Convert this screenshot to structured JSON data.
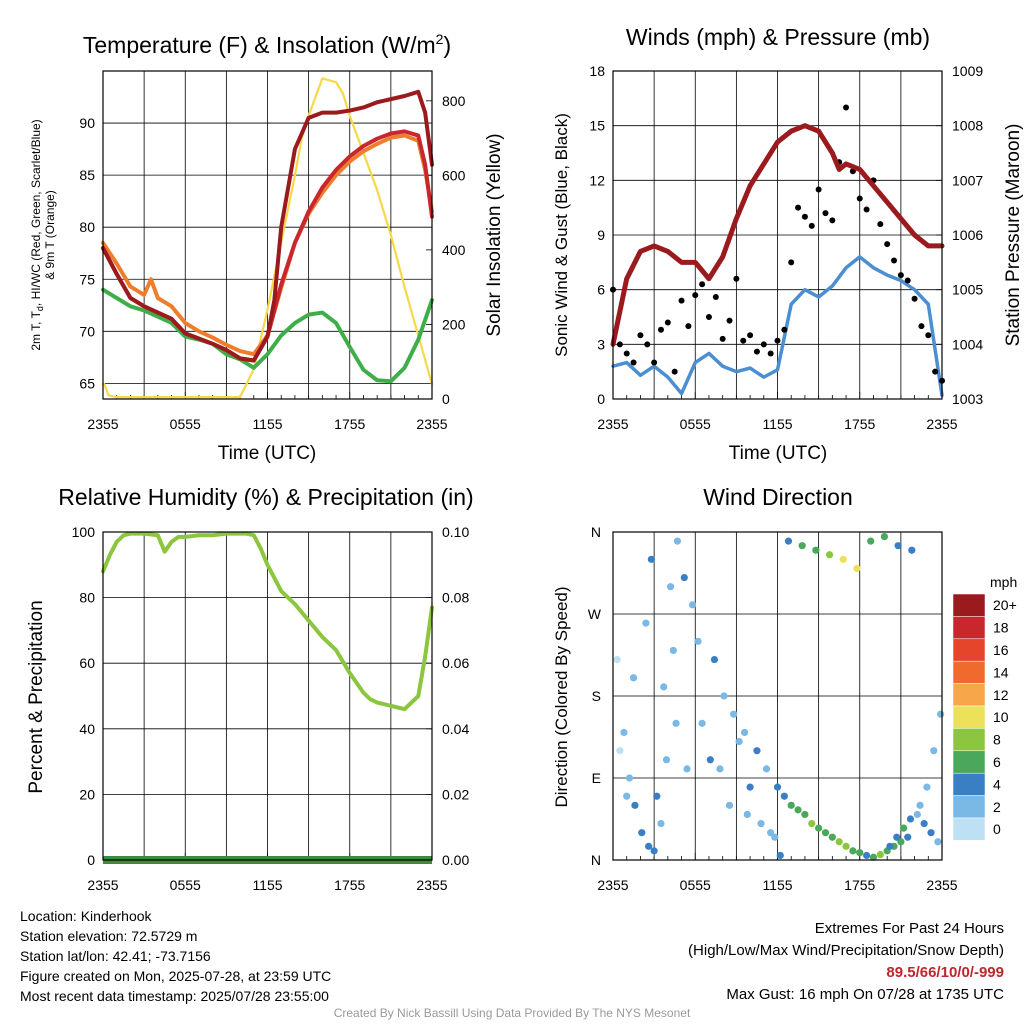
{
  "chart_data": [
    {
      "type": "line",
      "title": "Temperature (F) & Insolation (W/m2)",
      "xlabel": "Time (UTC)",
      "ylabel": "2m T, Td, HI/WC (Red, Green, Scarlet/Blue) & 9m T (Orange)",
      "y2label": "Solar Insolation (Yellow)",
      "x_ticks": [
        "2355",
        "0555",
        "1155",
        "1755",
        "2355"
      ],
      "ylim": [
        63.5,
        95
      ],
      "y_ticks": [
        65,
        70,
        75,
        80,
        85,
        90
      ],
      "y2lim": [
        0,
        880
      ],
      "y2_ticks": [
        0,
        200,
        400,
        600,
        800
      ],
      "series": [
        {
          "name": "2m T",
          "color": "#c8282d",
          "axis": "left",
          "x": [
            0,
            1,
            2,
            3,
            4,
            5,
            6,
            7,
            8,
            9,
            10,
            11,
            12,
            13,
            14,
            15,
            16,
            17,
            18,
            19,
            20,
            21,
            22,
            23,
            23.5,
            24
          ],
          "y": [
            78,
            75.5,
            73.2,
            72.4,
            71.8,
            71.2,
            69.8,
            69.3,
            68.8,
            68.2,
            67.4,
            67.2,
            69.5,
            74.5,
            78.5,
            81.5,
            83.8,
            85.5,
            86.8,
            87.8,
            88.5,
            89,
            89.2,
            88.8,
            86,
            81
          ]
        },
        {
          "name": "Td",
          "color": "#3fae49",
          "axis": "left",
          "x": [
            0,
            1,
            2,
            3,
            4,
            5,
            6,
            7,
            8,
            9,
            10,
            11,
            12,
            13,
            14,
            15,
            16,
            17,
            18,
            19,
            20,
            21,
            22,
            23,
            24
          ],
          "y": [
            74,
            73.2,
            72.4,
            72,
            71.4,
            70.8,
            69.5,
            69.2,
            68.8,
            67.8,
            67.3,
            66.5,
            67.8,
            69.6,
            70.8,
            71.6,
            71.8,
            70.8,
            68.5,
            66.3,
            65.3,
            65.2,
            66.5,
            69.2,
            73
          ]
        },
        {
          "name": "HI/WC",
          "color": "#9b1a1e",
          "axis": "left",
          "x": [
            0,
            1,
            2,
            3,
            4,
            5,
            6,
            7,
            8,
            9,
            10,
            11,
            12,
            12.5,
            13,
            14,
            15,
            16,
            17,
            18,
            19,
            20,
            21,
            22,
            23,
            23.5,
            24
          ],
          "y": [
            78,
            75.5,
            73.2,
            72.4,
            71.8,
            71.2,
            69.8,
            69.3,
            68.8,
            68.2,
            67.4,
            67.2,
            69.5,
            73,
            80,
            87.5,
            90.5,
            91,
            91,
            91.2,
            91.5,
            92,
            92.3,
            92.6,
            93,
            91,
            86
          ]
        },
        {
          "name": "9m T",
          "color": "#ee7d2d",
          "axis": "left",
          "x": [
            0,
            1,
            2,
            3,
            3.5,
            4,
            5,
            6,
            7,
            8,
            9,
            10,
            11,
            12,
            13,
            14,
            15,
            16,
            17,
            18,
            19,
            20,
            21,
            22,
            23,
            23.5,
            24
          ],
          "y": [
            78.5,
            76.5,
            74.3,
            73.5,
            75,
            73.2,
            72.4,
            70.8,
            70,
            69.4,
            68.7,
            68.1,
            67.8,
            69.6,
            74.2,
            78.5,
            81.3,
            83.3,
            85,
            86.3,
            87.3,
            88,
            88.6,
            88.8,
            88.3,
            85.5,
            81.5
          ]
        },
        {
          "name": "Solar Insolation",
          "color": "#f5d949",
          "axis": "right",
          "x": [
            0,
            0.1,
            0.4,
            1,
            2,
            3,
            4,
            5,
            6,
            7,
            8,
            9,
            9.5,
            10,
            11,
            12,
            13,
            14,
            14.5,
            15,
            16,
            17,
            17.5,
            18,
            19,
            20,
            21,
            22,
            23,
            24
          ],
          "y": [
            40,
            40,
            10,
            5,
            5,
            5,
            5,
            5,
            5,
            5,
            5,
            5,
            5,
            5,
            80,
            240,
            420,
            600,
            700,
            760,
            860,
            850,
            820,
            760,
            660,
            560,
            440,
            300,
            170,
            40
          ]
        }
      ]
    },
    {
      "type": "scatter",
      "title": "Winds (mph) & Pressure (mb)",
      "xlabel": "Time (UTC)",
      "ylabel": "Sonic Wind & Gust (Blue, Black)",
      "y2label": "Station Pressure (Maroon)",
      "x_ticks": [
        "2355",
        "0555",
        "1155",
        "1755",
        "2355"
      ],
      "ylim": [
        0,
        18
      ],
      "y_ticks": [
        0,
        3,
        6,
        9,
        12,
        15,
        18
      ],
      "y2lim": [
        1003,
        1009
      ],
      "y2_ticks": [
        1003,
        1004,
        1005,
        1006,
        1007,
        1008,
        1009
      ],
      "series": [
        {
          "name": "Sonic Wind",
          "color": "#4b8fd1",
          "axis": "left",
          "x": [
            0,
            1,
            2,
            3,
            4,
            5,
            6,
            7,
            8,
            9,
            10,
            11,
            12,
            13,
            14,
            15,
            16,
            17,
            18,
            19,
            20,
            21,
            22,
            23,
            24
          ],
          "y": [
            1.8,
            2,
            1.3,
            1.8,
            1.2,
            0.3,
            2,
            2.5,
            1.8,
            1.5,
            1.7,
            1.2,
            1.6,
            5.2,
            6,
            5.6,
            6.2,
            7.2,
            7.8,
            7.2,
            6.8,
            6.5,
            6,
            5.2,
            0.2
          ]
        },
        {
          "name": "Gust",
          "color": "#000000",
          "axis": "left",
          "x": [
            0,
            0.5,
            1,
            1.5,
            2,
            2.5,
            3,
            3.5,
            4,
            4.5,
            5,
            5.5,
            6,
            6.5,
            7,
            7.5,
            8,
            8.5,
            9,
            9.5,
            10,
            10.5,
            11,
            11.5,
            12,
            12.5,
            13,
            13.5,
            14,
            14.5,
            15,
            15.5,
            16,
            16.5,
            17,
            17.5,
            18,
            18.5,
            19,
            19.5,
            20,
            20.5,
            21,
            21.5,
            22,
            22.5,
            23,
            23.5,
            24
          ],
          "y": [
            6,
            3,
            2.5,
            2,
            3.5,
            3,
            2,
            3.8,
            4.2,
            1.5,
            5.4,
            4,
            5.7,
            6.3,
            4.5,
            5.6,
            3.3,
            4.3,
            6.6,
            3.2,
            3.5,
            2.6,
            3,
            2.5,
            3.2,
            3.8,
            7.5,
            10.5,
            10,
            9.5,
            11.5,
            10.2,
            9.8,
            13,
            16,
            12.5,
            11,
            10.4,
            12,
            9.6,
            8.5,
            7.6,
            6.8,
            6.5,
            5.5,
            4,
            3.5,
            1.5,
            1
          ]
        },
        {
          "name": "Station Pressure",
          "color": "#9b1a1e",
          "axis": "right",
          "x": [
            0,
            0.5,
            1,
            2,
            3,
            4,
            5,
            6,
            7,
            8,
            9,
            10,
            11,
            12,
            13,
            14,
            15,
            16,
            16.5,
            17,
            18,
            19,
            20,
            21,
            22,
            23,
            24
          ],
          "y": [
            1004,
            1004.6,
            1005.2,
            1005.7,
            1005.8,
            1005.7,
            1005.5,
            1005.5,
            1005.2,
            1005.6,
            1006.3,
            1006.9,
            1007.3,
            1007.7,
            1007.9,
            1008,
            1007.9,
            1007.5,
            1007.2,
            1007.3,
            1007.2,
            1006.9,
            1006.6,
            1006.3,
            1006,
            1005.8,
            1005.8
          ]
        }
      ]
    },
    {
      "type": "line",
      "title": "Relative Humidity (%) & Precipitation (in)",
      "xlabel": "",
      "ylabel": "Percent & Precipitation",
      "x_ticks": [
        "2355",
        "0555",
        "1155",
        "1755",
        "2355"
      ],
      "ylim": [
        0,
        100
      ],
      "y_ticks": [
        0,
        20,
        40,
        60,
        80,
        100
      ],
      "y2lim": [
        0,
        0.1
      ],
      "y2_ticks": [
        "0.00",
        "0.02",
        "0.04",
        "0.06",
        "0.08",
        "0.10"
      ],
      "series": [
        {
          "name": "Relative Humidity",
          "color": "#8cc63f",
          "axis": "left",
          "x": [
            0,
            0.5,
            1,
            1.5,
            2,
            3,
            4,
            4.5,
            5,
            5.5,
            6,
            7,
            8,
            9,
            10,
            10.5,
            11,
            11.5,
            12,
            13,
            14,
            15,
            16,
            17,
            18,
            19,
            19.5,
            20,
            21,
            22,
            22.5,
            23,
            23.5,
            24
          ],
          "y": [
            88,
            93,
            97,
            99,
            99.5,
            99.5,
            99,
            94,
            97,
            98.5,
            98.5,
            99,
            99,
            99.5,
            99.5,
            99.5,
            99,
            95,
            90,
            82,
            78,
            73,
            68,
            64,
            57,
            51,
            49,
            48,
            47,
            46,
            48,
            50,
            62,
            77
          ]
        },
        {
          "name": "Precipitation",
          "color": "#3c8c3c",
          "axis": "right",
          "x": [
            0,
            24
          ],
          "y": [
            0,
            0
          ]
        }
      ]
    },
    {
      "type": "scatter",
      "title": "Wind Direction",
      "xlabel": "",
      "ylabel": "Direction (Colored By Speed)",
      "x_ticks": [
        "2355",
        "0555",
        "1155",
        "1755",
        "2355"
      ],
      "y_tick_labels": [
        "N",
        "E",
        "S",
        "W",
        "N"
      ],
      "y_ticks_deg": [
        0,
        90,
        180,
        270,
        360
      ],
      "legend": {
        "title": "mph",
        "labels": [
          "20+",
          "18",
          "16",
          "14",
          "12",
          "10",
          "8",
          "6",
          "4",
          "2",
          "0"
        ],
        "colors": [
          "#9b1a1e",
          "#c8282d",
          "#e5452a",
          "#ef6a2c",
          "#f7a64a",
          "#ede05a",
          "#8cc63f",
          "#4aa85a",
          "#3a7fc3",
          "#7ab8e5",
          "#bde0f5"
        ]
      },
      "series": [
        {
          "name": "points",
          "x": [
            0.3,
            0.8,
            1.2,
            1.6,
            2.1,
            2.6,
            3,
            3.5,
            4.2,
            4.7,
            0.5,
            1,
            1.5,
            2.4,
            2.8,
            3.7,
            4.4,
            5.2,
            5.8,
            6.5,
            7.1,
            7.8,
            8.5,
            9.2,
            10,
            10.8,
            11.5,
            6.2,
            7.4,
            8.1,
            8.8,
            9.6,
            10.5,
            11.2,
            12,
            12.5,
            13,
            13.5,
            14,
            14.5,
            15,
            15.5,
            16,
            16.5,
            17,
            17.5,
            18,
            18.5,
            19,
            19.5,
            20,
            20.5,
            21,
            21.5,
            12.8,
            13.8,
            14.8,
            15.8,
            16.8,
            17.8,
            18.8,
            19.8,
            20.8,
            21.8,
            22.2,
            22.7,
            23.2,
            23.7,
            20.2,
            20.7,
            21.2,
            21.7,
            22.4,
            22.9,
            23.4,
            23.9,
            3.2,
            3.9,
            4.6,
            5.4,
            9.8,
            11.8,
            12.2
          ],
          "dir": [
            220,
            140,
            90,
            60,
            30,
            15,
            10,
            40,
            300,
            350,
            120,
            70,
            200,
            260,
            330,
            190,
            230,
            310,
            280,
            150,
            110,
            100,
            60,
            130,
            80,
            40,
            30,
            240,
            220,
            180,
            160,
            140,
            120,
            100,
            80,
            70,
            60,
            55,
            50,
            40,
            35,
            30,
            25,
            20,
            15,
            10,
            8,
            5,
            3,
            6,
            10,
            15,
            20,
            25,
            350,
            345,
            340,
            335,
            330,
            320,
            350,
            355,
            345,
            340,
            50,
            40,
            30,
            20,
            15,
            25,
            35,
            45,
            60,
            80,
            120,
            160,
            70,
            110,
            150,
            100,
            50,
            25,
            5
          ],
          "spd": [
            1,
            2,
            3,
            4,
            5,
            5,
            4,
            3,
            2,
            2,
            1,
            3,
            2,
            3,
            4,
            2,
            3,
            4,
            3,
            2,
            4,
            3,
            2,
            3,
            4,
            3,
            2,
            3,
            4,
            3,
            2,
            3,
            4,
            3,
            4,
            5,
            6,
            6,
            7,
            8,
            7,
            6,
            7,
            8,
            9,
            7,
            6,
            5,
            7,
            8,
            6,
            7,
            6,
            5,
            4,
            6,
            7,
            8,
            10,
            11,
            7,
            6,
            5,
            4,
            3,
            4,
            5,
            3,
            4,
            5,
            6,
            4,
            3,
            2,
            3,
            2,
            4,
            3,
            2,
            3,
            2,
            3,
            4
          ]
        }
      ]
    }
  ],
  "info": {
    "location": "Location: Kinderhook",
    "elevation": "Station elevation: 72.5729 m",
    "latlon": "Station lat/lon: 42.41; -73.7156",
    "created": "Figure created on Mon, 2025-07-28, at 23:59 UTC",
    "recent": "Most recent data timestamp: 2025/07/28 23:55:00"
  },
  "extremes": {
    "title": "Extremes For Past 24 Hours",
    "subtitle": "(High/Low/Max Wind/Precipitation/Snow Depth)",
    "values": "89.5/66/10/0/-999",
    "max_gust": "Max Gust: 16 mph On 07/28 at 1735 UTC"
  },
  "credit": "Created By Nick Bassill Using Data Provided By The NYS Mesonet"
}
